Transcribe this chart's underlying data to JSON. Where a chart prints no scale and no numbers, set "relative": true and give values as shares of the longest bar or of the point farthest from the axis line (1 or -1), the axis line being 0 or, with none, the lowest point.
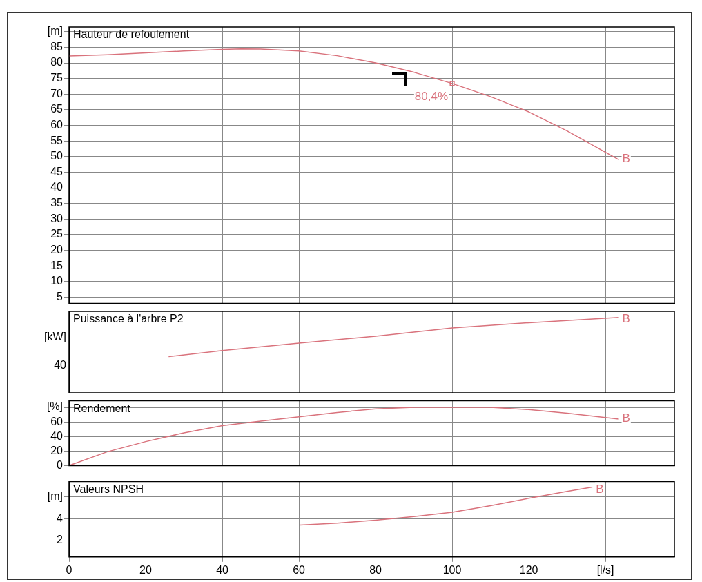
{
  "chart_data": [
    {
      "type": "line",
      "title": "Hauteur de refoulement",
      "xlim": [
        0,
        158
      ],
      "xticks": [
        0,
        20,
        40,
        60,
        80,
        100,
        120,
        140
      ],
      "ylim": [
        3,
        91.5
      ],
      "yticks": [
        {
          "value": 90,
          "label": "[m]"
        },
        85,
        80,
        75,
        70,
        65,
        60,
        55,
        50,
        45,
        40,
        35,
        30,
        25,
        20,
        15,
        10,
        5
      ],
      "grid": true,
      "tick_labels": "y",
      "marker": "none",
      "series": [
        {
          "color": "#d9727c",
          "x": [
            0,
            10,
            20,
            30,
            40,
            45,
            50,
            60,
            70,
            80,
            90,
            100,
            110,
            120,
            130,
            143.5
          ],
          "values": [
            82.2,
            82.6,
            83.2,
            83.8,
            84.3,
            84.5,
            84.4,
            83.8,
            82.3,
            80,
            77,
            73.4,
            69.2,
            64.3,
            58.2,
            49
          ]
        },
        {
          "type": "scatter",
          "marker": "square",
          "color": "#d9727c",
          "x": [
            100
          ],
          "values": [
            73.4
          ]
        }
      ],
      "annotations": [
        {
          "text": "80,4%",
          "x": 100,
          "y": 73.4
        },
        {
          "text": "B",
          "x": 143.5,
          "y": 49
        }
      ]
    },
    {
      "type": "line",
      "title": "Puissance à l'arbre P2",
      "ylabel": "[kW]",
      "relative": true,
      "xlim": [
        0,
        158
      ],
      "xticks": [
        0,
        20,
        40,
        60,
        80,
        100,
        120,
        140
      ],
      "grid": "x",
      "tick_labels": "y",
      "marker": "none",
      "series": [
        {
          "color": "#d9727c",
          "x": [
            26,
            40,
            60,
            80,
            100,
            120,
            143.5
          ],
          "values": [
            0.48,
            0.56,
            0.66,
            0.75,
            0.86,
            0.93,
            1
          ]
        }
      ],
      "annotations": [
        "40",
        {
          "text": "B",
          "x": 143.5,
          "y": 1
        }
      ]
    },
    {
      "type": "line",
      "title": "Rendement",
      "xlim": [
        0,
        158
      ],
      "xticks": [
        0,
        20,
        40,
        60,
        80,
        100,
        120,
        140
      ],
      "ylim": [
        0,
        89
      ],
      "yticks": [
        {
          "value": 80,
          "label": "[%]"
        },
        60,
        40,
        20,
        0
      ],
      "grid": true,
      "tick_labels": "y",
      "marker": "none",
      "series": [
        {
          "color": "#d9727c",
          "x": [
            0,
            10,
            20,
            30,
            40,
            50,
            60,
            70,
            80,
            90,
            100,
            110,
            120,
            130,
            143.5
          ],
          "values": [
            0,
            19,
            33,
            45,
            55,
            61,
            67,
            73,
            78,
            80,
            80,
            80,
            77,
            72,
            64
          ]
        }
      ],
      "annotations": [
        {
          "text": "B",
          "x": 143.5,
          "y": 64
        }
      ]
    },
    {
      "type": "line",
      "title": "Valeurs NPSH",
      "xlim": [
        0,
        158
      ],
      "xticks": [
        0,
        20,
        40,
        60,
        80,
        100,
        120,
        {
          "value": 140,
          "label": "[l/s]"
        }
      ],
      "ylim": [
        0.5,
        7.4
      ],
      "yticks": [
        {
          "value": 6,
          "label": "[m]"
        },
        4,
        2
      ],
      "grid": true,
      "marker": "none",
      "series": [
        {
          "color": "#d9727c",
          "x": [
            60.3,
            70,
            80,
            90,
            100,
            110,
            120,
            130,
            136.6
          ],
          "values": [
            3.42,
            3.6,
            3.87,
            4.2,
            4.6,
            5.2,
            5.87,
            6.5,
            6.9
          ]
        }
      ],
      "annotations": [
        {
          "text": "B",
          "x": 136.6,
          "y": 6.9
        }
      ]
    }
  ]
}
